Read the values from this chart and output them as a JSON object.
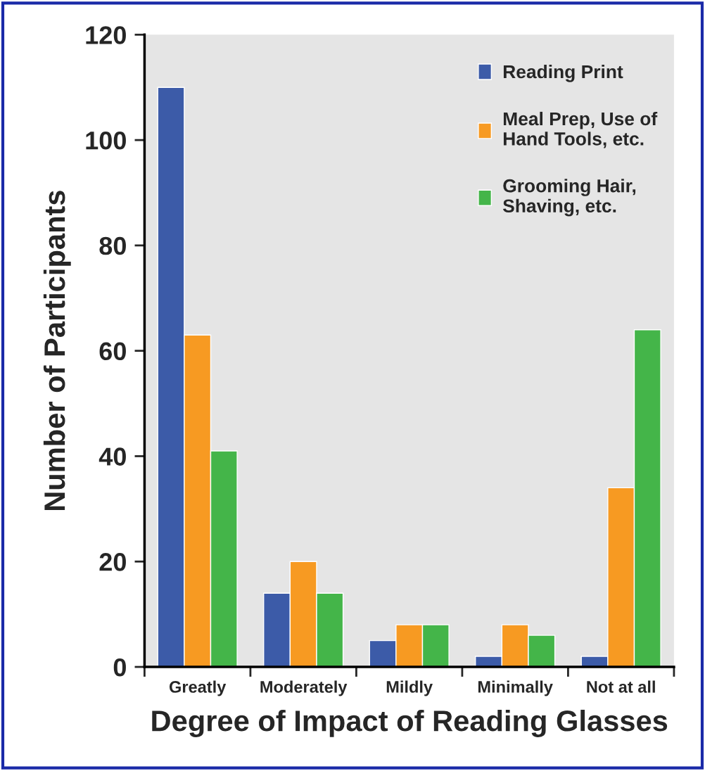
{
  "chart_data": {
    "type": "bar",
    "xlabel": "Degree of Impact of Reading Glasses",
    "ylabel": "Number of Participants",
    "categories": [
      "Greatly",
      "Moderately",
      "Mildly",
      "Minimally",
      "Not at all"
    ],
    "series": [
      {
        "name": "Reading Print",
        "color": "#3c5ba8",
        "values": [
          110,
          14,
          5,
          2,
          2
        ]
      },
      {
        "name": "Meal Prep, Use of\nHand Tools, etc.",
        "color": "#f79a22",
        "values": [
          63,
          20,
          8,
          8,
          34
        ]
      },
      {
        "name": "Grooming Hair,\nShaving, etc.",
        "color": "#44b549",
        "values": [
          41,
          14,
          8,
          6,
          64
        ]
      }
    ],
    "ylim": [
      0,
      120
    ],
    "yticks": [
      0,
      20,
      40,
      60,
      80,
      100,
      120
    ],
    "grid": false,
    "legend": "top right"
  }
}
